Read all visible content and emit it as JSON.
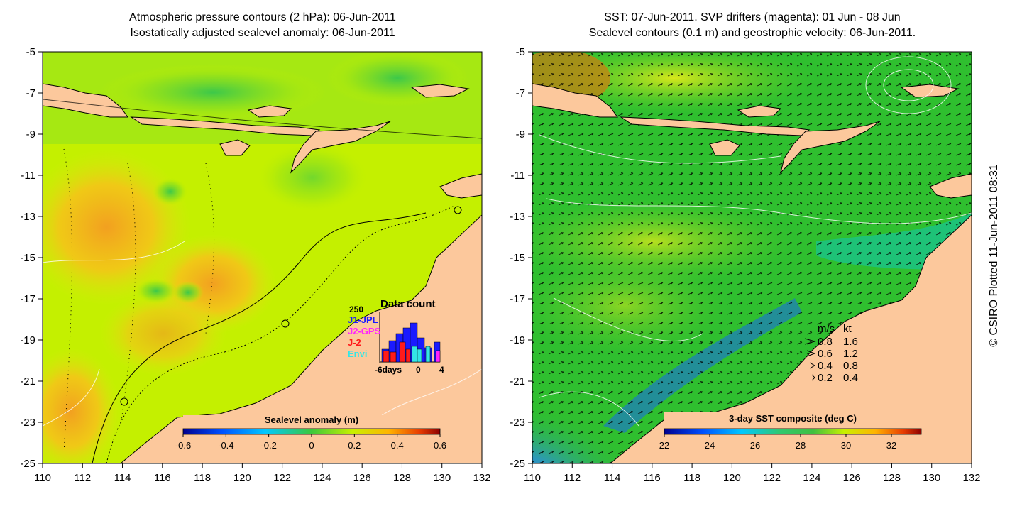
{
  "left_panel": {
    "title_line1": "Atmospheric pressure contours (2 hPa): 06-Jun-2011",
    "title_line2": "Isostatically adjusted sealevel anomaly: 06-Jun-2011",
    "colorbar": {
      "label": "Sealevel anomaly (m)",
      "ticks": [
        "-0.6",
        "-0.4",
        "-0.2",
        "0",
        "0.2",
        "0.4",
        "0.6"
      ]
    },
    "data_count": {
      "title": "Data count",
      "max_label": "250",
      "x_min_label": "-6days",
      "x_mid_label": "0",
      "x_max_label": "4",
      "missions": [
        {
          "name": "J1-JPL",
          "color": "#1a1aff"
        },
        {
          "name": "J2-GPS",
          "color": "#ff22ff"
        },
        {
          "name": "J-2",
          "color": "#ff1a1a"
        },
        {
          "name": "Envi",
          "color": "#33e6e6"
        }
      ]
    }
  },
  "right_panel": {
    "title_line1": "SST: 07-Jun-2011. SVP drifters (magenta): 01 Jun - 08 Jun",
    "title_line2": "Sealevel contours (0.1 m) and geostrophic velocity: 06-Jun-2011.",
    "colorbar": {
      "label": "3-day SST composite (deg C)",
      "ticks": [
        "22",
        "24",
        "26",
        "28",
        "30",
        "32"
      ]
    },
    "velocity_legend": {
      "header_ms": "m/s",
      "header_kt": "kt",
      "rows": [
        {
          "ms": "0.8",
          "kt": "1.6"
        },
        {
          "ms": "0.6",
          "kt": "1.2"
        },
        {
          "ms": "0.4",
          "kt": "0.8"
        },
        {
          "ms": "0.2",
          "kt": "0.4"
        }
      ]
    }
  },
  "axes": {
    "lat_ticks": [
      "-5",
      "-7",
      "-9",
      "-11",
      "-13",
      "-15",
      "-17",
      "-19",
      "-21",
      "-23",
      "-25"
    ],
    "lon_ticks": [
      "110",
      "112",
      "114",
      "116",
      "118",
      "120",
      "122",
      "124",
      "126",
      "128",
      "130",
      "132"
    ]
  },
  "credit": "© CSIRO Plotted 11-Jun-2011 08:31",
  "colors": {
    "land": "#fcc89c",
    "sla_base": "#c4f000",
    "sst_base": "#2fbf2f"
  }
}
